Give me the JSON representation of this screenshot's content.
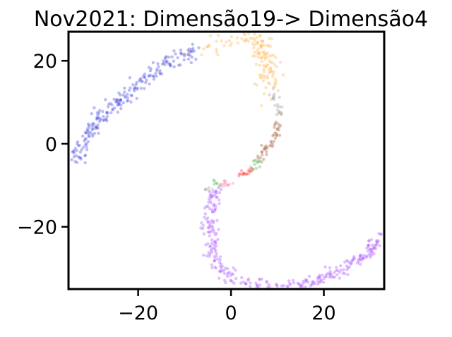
{
  "chart_data": {
    "type": "scatter",
    "title": "Nov2021: Dimensão19-> Dimensão4",
    "xlabel": "",
    "ylabel": "",
    "xlim": [
      -35,
      33
    ],
    "ylim": [
      -35,
      27
    ],
    "xticks": [
      -20,
      0,
      20
    ],
    "yticks": [
      -20,
      0,
      20
    ],
    "xtick_labels": [
      "−20",
      "0",
      "20"
    ],
    "ytick_labels": [
      "−20",
      "0",
      "20"
    ],
    "grid": false,
    "legend": "none",
    "point_alpha": 0.35,
    "colors": {
      "blue": "#3b3fe0",
      "orange": "#ffb347",
      "gray": "#9e9e9e",
      "brown": "#a0522d",
      "green": "#4caf50",
      "red": "#ff3030",
      "pink": "#ff7fa0",
      "purple": "#a64dff"
    },
    "series": [
      {
        "color_key": "blue",
        "count": 230,
        "jitter": 0.9,
        "path": [
          [
            -34,
            -4
          ],
          [
            -33,
            -2
          ],
          [
            -31,
            2
          ],
          [
            -29,
            5
          ],
          [
            -26,
            8
          ],
          [
            -23,
            11
          ],
          [
            -20,
            14
          ],
          [
            -17,
            17
          ],
          [
            -14,
            19
          ],
          [
            -11,
            21
          ],
          [
            -8,
            22.5
          ]
        ]
      },
      {
        "color_key": "orange",
        "count": 45,
        "jitter": 1.2,
        "path": [
          [
            -8,
            22.5
          ],
          [
            -5,
            23
          ],
          [
            -2,
            24
          ],
          [
            1,
            25
          ],
          [
            4,
            25.5
          ],
          [
            7,
            25
          ]
        ]
      },
      {
        "color_key": "orange",
        "count": 95,
        "jitter": 1.3,
        "path": [
          [
            6,
            25
          ],
          [
            7,
            22
          ],
          [
            7.5,
            19
          ],
          [
            8,
            16
          ],
          [
            8.5,
            13
          ]
        ]
      },
      {
        "color_key": "gray",
        "count": 22,
        "jitter": 0.6,
        "path": [
          [
            8.5,
            13
          ],
          [
            9.5,
            11
          ],
          [
            10,
            9
          ],
          [
            10.5,
            7
          ]
        ]
      },
      {
        "color_key": "brown",
        "count": 45,
        "jitter": 0.5,
        "path": [
          [
            10.5,
            7
          ],
          [
            10,
            4
          ],
          [
            9.5,
            2
          ],
          [
            8.5,
            0
          ],
          [
            7,
            -2.5
          ],
          [
            6,
            -4
          ]
        ]
      },
      {
        "color_key": "green",
        "count": 12,
        "jitter": 0.5,
        "path": [
          [
            6,
            -4
          ],
          [
            5,
            -5.5
          ],
          [
            4.5,
            -6
          ]
        ]
      },
      {
        "color_key": "red",
        "count": 18,
        "jitter": 0.4,
        "path": [
          [
            4.5,
            -6
          ],
          [
            3.5,
            -7
          ],
          [
            2,
            -7.5
          ],
          [
            1,
            -8
          ]
        ]
      },
      {
        "color_key": "pink",
        "count": 14,
        "jitter": 0.5,
        "path": [
          [
            -2,
            -8.5
          ],
          [
            -1,
            -9.5
          ],
          [
            -1.5,
            -10.5
          ]
        ]
      },
      {
        "color_key": "green",
        "count": 6,
        "jitter": 0.4,
        "path": [
          [
            -3.5,
            -9
          ],
          [
            -3,
            -10
          ]
        ]
      },
      {
        "color_key": "gray",
        "count": 6,
        "jitter": 0.4,
        "path": [
          [
            -5,
            -10.5
          ],
          [
            -4,
            -11
          ]
        ]
      },
      {
        "color_key": "purple",
        "count": 360,
        "jitter": 0.8,
        "path": [
          [
            -3.5,
            -11.5
          ],
          [
            -4,
            -14
          ],
          [
            -4.5,
            -18
          ],
          [
            -4.5,
            -22
          ],
          [
            -4,
            -25
          ],
          [
            -3,
            -28
          ],
          [
            -1,
            -31
          ],
          [
            2,
            -33
          ],
          [
            6,
            -34.5
          ],
          [
            10,
            -35
          ],
          [
            14,
            -34.5
          ],
          [
            18,
            -33
          ],
          [
            22,
            -31
          ],
          [
            26,
            -29
          ],
          [
            29,
            -27
          ],
          [
            31,
            -25
          ],
          [
            32,
            -22
          ]
        ]
      }
    ]
  }
}
